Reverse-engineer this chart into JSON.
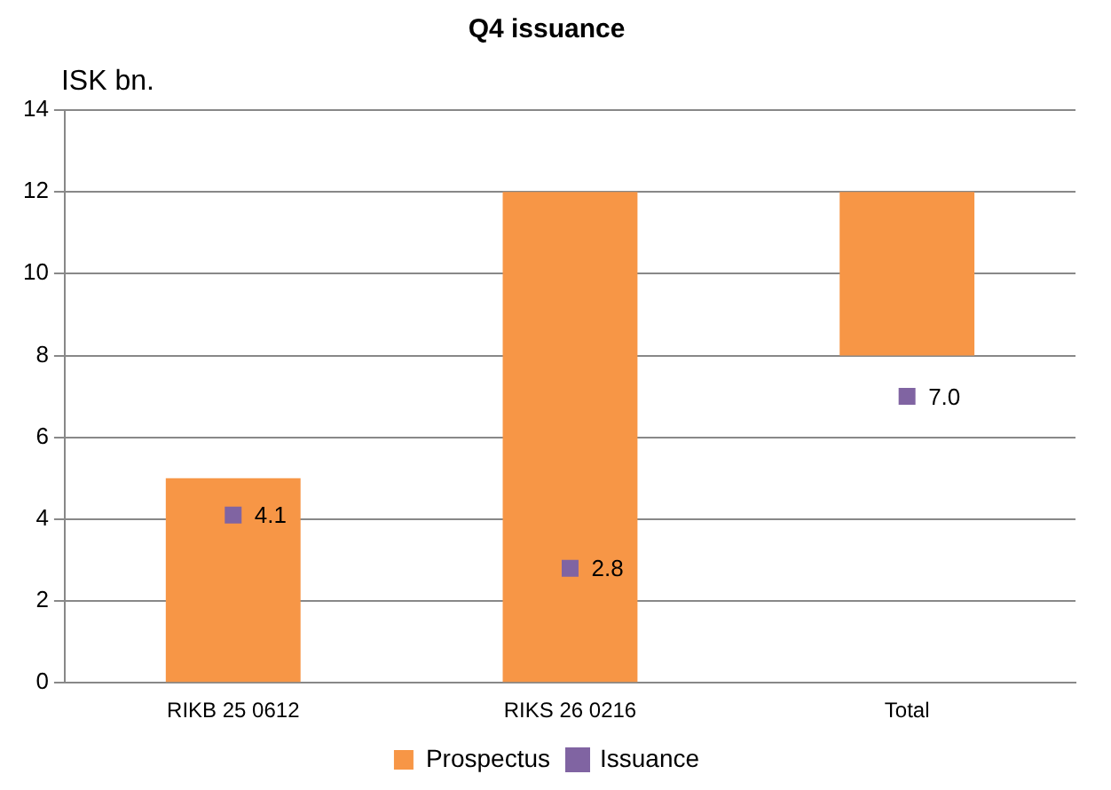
{
  "chart_data": {
    "type": "bar",
    "title": "Q4 issuance",
    "ylabel": "ISK bn.",
    "categories": [
      "RIKB 25 0612",
      "RIKS 26 0216",
      "Total"
    ],
    "series": [
      {
        "name": "Prospectus",
        "color": "#f79646",
        "base": [
          0,
          0,
          8
        ],
        "values": [
          5,
          12,
          4
        ]
      },
      {
        "name": "Issuance",
        "type": "scatter",
        "color": "#8064a2",
        "marker": "square",
        "x": [
          "RIKB 25 0612",
          "RIKS 26 0216",
          "Total"
        ],
        "values": [
          4.1,
          2.8,
          7.0
        ],
        "value_labels": [
          "4.1",
          "2.8",
          "7.0"
        ]
      }
    ],
    "ylim": [
      0,
      14
    ],
    "yticks": [
      0,
      2,
      4,
      6,
      8,
      10,
      12,
      14
    ],
    "grid": "y",
    "legend": "bottom"
  }
}
